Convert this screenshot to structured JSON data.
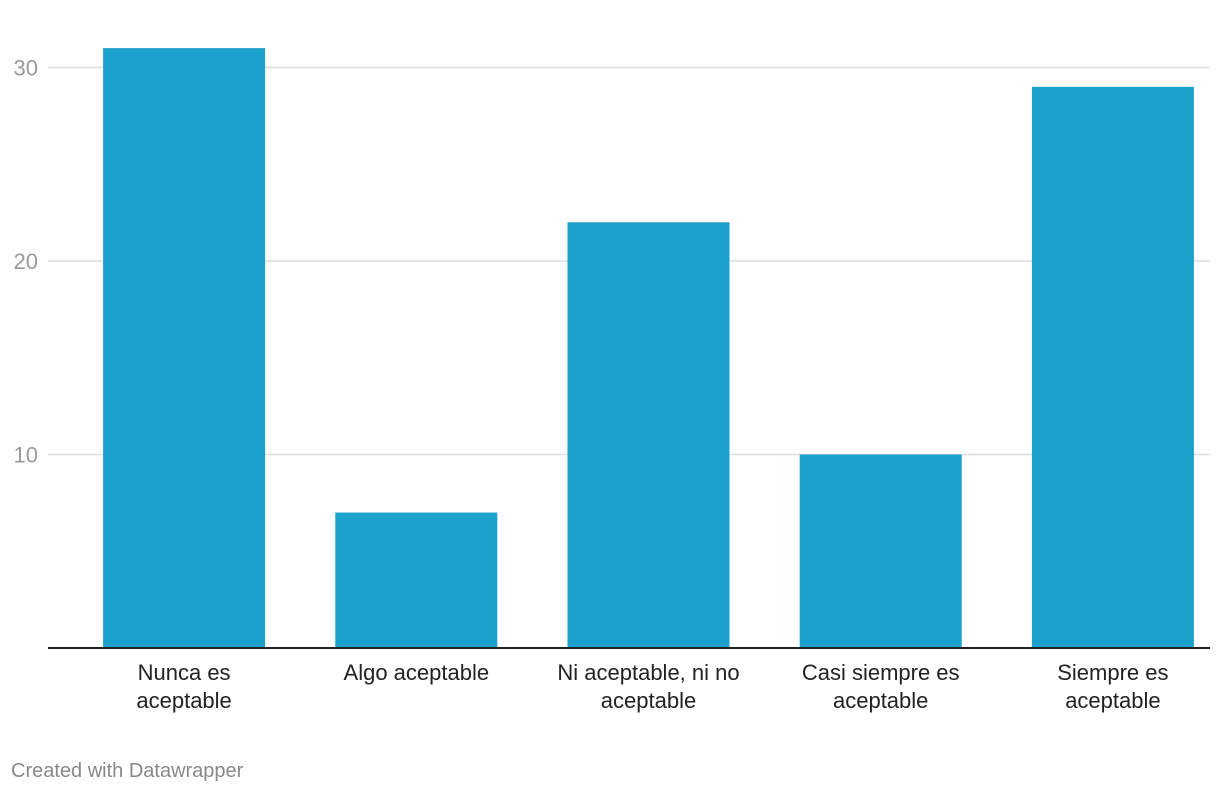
{
  "chart_data": {
    "type": "bar",
    "categories": [
      [
        "Nunca es",
        "aceptable"
      ],
      [
        "Algo aceptable"
      ],
      [
        "Ni aceptable, ni no",
        "aceptable"
      ],
      [
        "Casi siempre es",
        "aceptable"
      ],
      [
        "Siempre es",
        "aceptable"
      ]
    ],
    "values": [
      31,
      7,
      22,
      10,
      29
    ],
    "yticks": [
      10,
      20,
      30
    ],
    "ylim": [
      0,
      31
    ],
    "grid": true,
    "bar_color": "#1aa1cc"
  },
  "credit": "Created with Datawrapper"
}
